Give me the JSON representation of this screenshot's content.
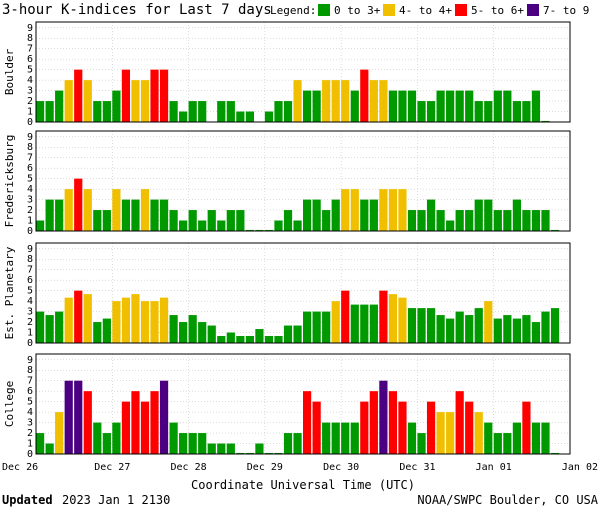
{
  "chart_data": {
    "type": "bar",
    "title": "3-hour K-indices for Last 7 days",
    "legend": {
      "label": "Legend:",
      "placement": "top",
      "items": [
        {
          "label": "0 to 3+",
          "color": "#009900"
        },
        {
          "label": "4- to 4+",
          "color": "#f0c000"
        },
        {
          "label": "5- to 6+",
          "color": "#ff0000"
        },
        {
          "label": "7- to 9",
          "color": "#4b0082"
        }
      ]
    },
    "xlabel": "Coordinate Universal Time (UTC)",
    "x_tick_labels": [
      "Dec 26",
      "Dec 27",
      "Dec 28",
      "Dec 29",
      "Dec 30",
      "Dec 31",
      "Jan 01",
      "Jan 02"
    ],
    "ylim": [
      0,
      9
    ],
    "y_tick_labels": [
      "0",
      "1",
      "2",
      "3",
      "4",
      "5",
      "6",
      "7",
      "8",
      "9"
    ],
    "grid": true,
    "panels": [
      {
        "name": "Boulder",
        "values": [
          2,
          2,
          3,
          4,
          5,
          4,
          2,
          2,
          3,
          5,
          4,
          4,
          5,
          5,
          2,
          1,
          2,
          2,
          0,
          2,
          2,
          1,
          1,
          0,
          1,
          2,
          2,
          4,
          3,
          3,
          4,
          4,
          4,
          3,
          5,
          4,
          4,
          3,
          3,
          3,
          2,
          2,
          3,
          3,
          3,
          3,
          2,
          2,
          3,
          3,
          2,
          2,
          3,
          0.1
        ]
      },
      {
        "name": "Fredericksburg",
        "values": [
          1,
          3,
          3,
          4,
          5,
          4,
          2,
          2,
          4,
          3,
          3,
          4,
          3,
          3,
          2,
          1,
          2,
          1,
          2,
          1,
          2,
          2,
          0.1,
          0.1,
          0.1,
          1,
          2,
          1,
          3,
          3,
          2,
          3,
          4,
          4,
          3,
          3,
          4,
          4,
          4,
          2,
          2,
          3,
          2,
          1,
          2,
          2,
          3,
          3,
          2,
          2,
          3,
          2,
          2,
          2,
          0.1
        ]
      },
      {
        "name": "Est. Planetary",
        "values": [
          3,
          2.667,
          3,
          4.333,
          5,
          4.667,
          2,
          2.333,
          4,
          4.333,
          4.667,
          4,
          4,
          4.333,
          2.667,
          2,
          2.667,
          2,
          1.667,
          0.667,
          1,
          0.667,
          0.667,
          1.333,
          0.667,
          0.667,
          1.667,
          1.667,
          3,
          3,
          3,
          4,
          5,
          3.667,
          3.667,
          3.667,
          5,
          4.667,
          4.333,
          3.333,
          3.333,
          3.333,
          2.667,
          2.333,
          3,
          2.667,
          3.333,
          4,
          2.333,
          2.667,
          2.333,
          2.667,
          2,
          3,
          3.333
        ]
      },
      {
        "name": "College",
        "values": [
          2,
          1,
          4,
          7,
          7,
          6,
          3,
          2,
          3,
          5,
          6,
          5,
          6,
          7,
          3,
          2,
          2,
          2,
          1,
          1,
          1,
          0.1,
          0.1,
          1,
          0.1,
          0.1,
          2,
          2,
          6,
          5,
          3,
          3,
          3,
          3,
          5,
          6,
          7,
          6,
          5,
          3,
          2,
          5,
          4,
          4,
          6,
          5,
          4,
          3,
          2,
          2,
          3,
          5,
          3,
          3,
          0.1
        ]
      }
    ]
  },
  "footer": {
    "updated_label": "Updated",
    "updated_value": "2023 Jan  1 2130",
    "credit": "NOAA/SWPC Boulder, CO USA"
  }
}
